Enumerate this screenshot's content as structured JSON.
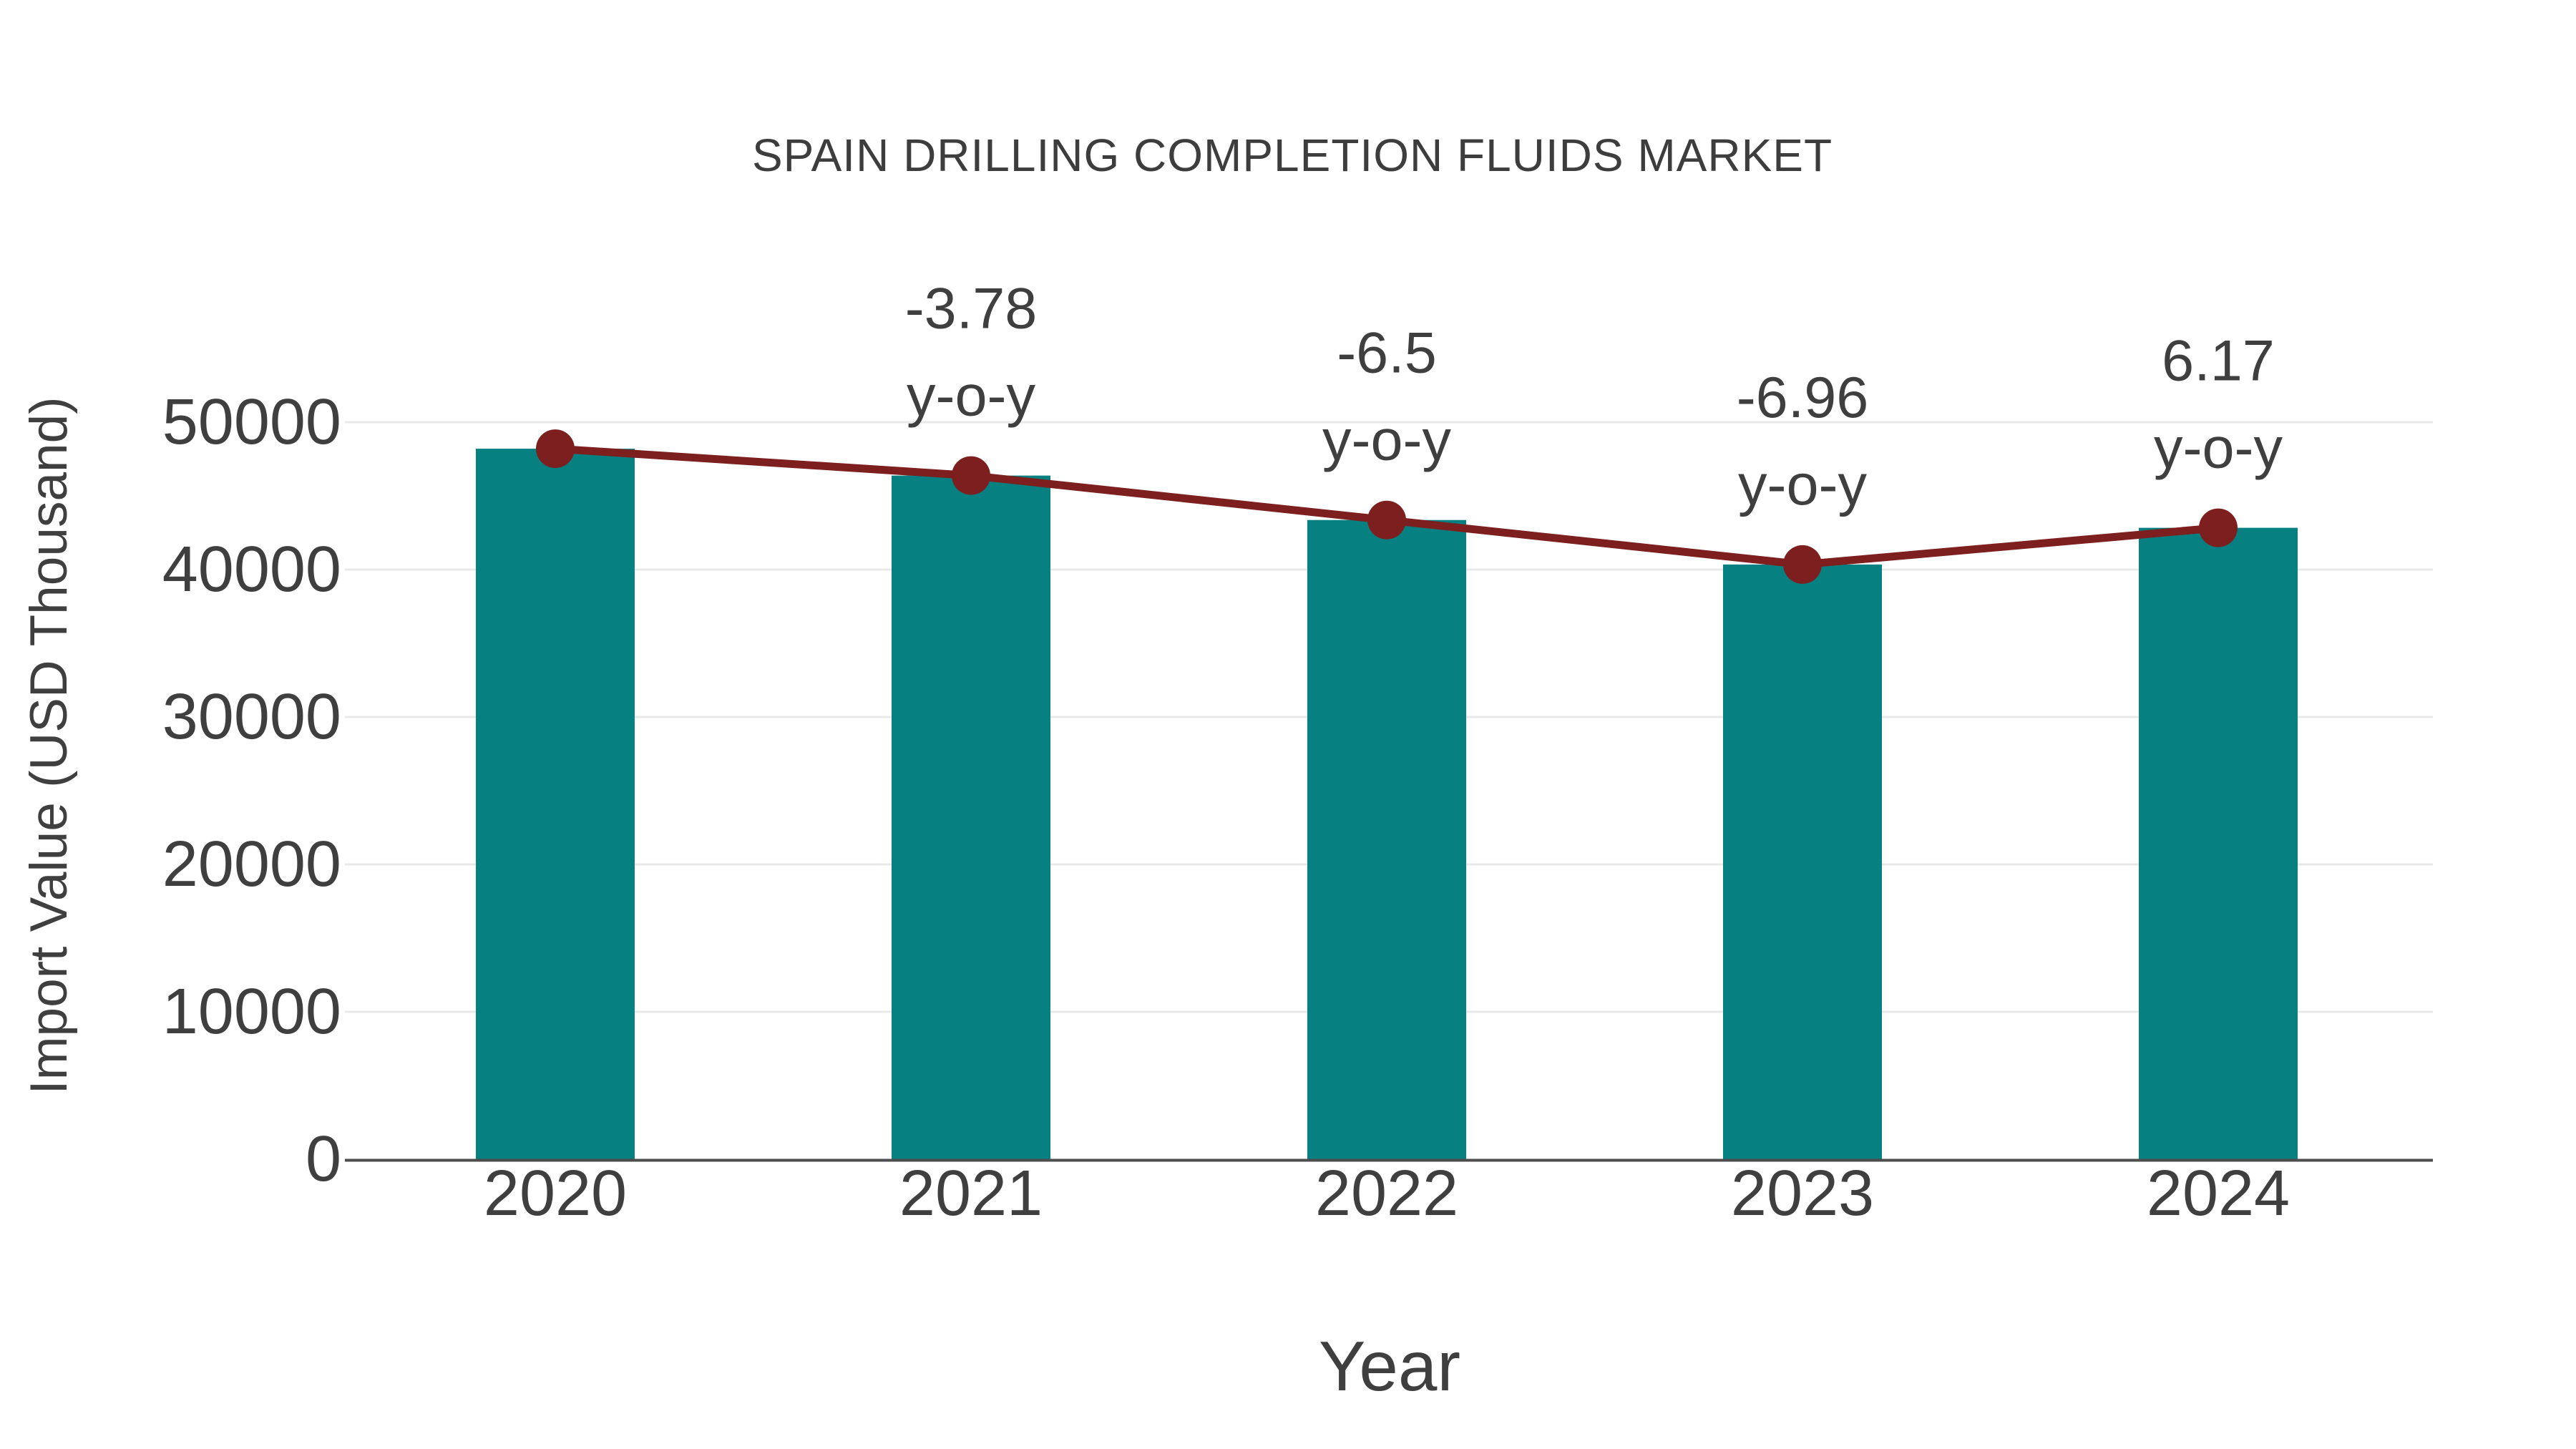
{
  "chart_data": {
    "type": "bar",
    "title": "SPAIN DRILLING COMPLETION FLUIDS MARKET",
    "xlabel": "Year",
    "ylabel": "Import Value (USD Thousand)",
    "categories": [
      "2020",
      "2021",
      "2022",
      "2023",
      "2024"
    ],
    "series": [
      {
        "name": "import-value-bars",
        "type": "bar",
        "values": [
          48200,
          46378,
          43363,
          40345,
          42834
        ]
      },
      {
        "name": "import-value-trend",
        "type": "line",
        "values": [
          48200,
          46378,
          43363,
          40345,
          42834
        ]
      }
    ],
    "annotations": [
      {
        "category": "2021",
        "label": "-3.78",
        "sublabel": "y-o-y"
      },
      {
        "category": "2022",
        "label": "-6.5",
        "sublabel": "y-o-y"
      },
      {
        "category": "2023",
        "label": "-6.96",
        "sublabel": "y-o-y"
      },
      {
        "category": "2024",
        "label": "6.17",
        "sublabel": "y-o-y"
      }
    ],
    "ylim": [
      0,
      50000
    ],
    "yticks": [
      0,
      10000,
      20000,
      30000,
      40000,
      50000
    ],
    "grid": true,
    "legend": false
  },
  "colors": {
    "bar": "#068080",
    "line": "#7E1F1F",
    "text": "#3F3F3F",
    "grid": "#E8E8E8",
    "axis": "#4D4D4D",
    "background": "#FFFFFF"
  }
}
